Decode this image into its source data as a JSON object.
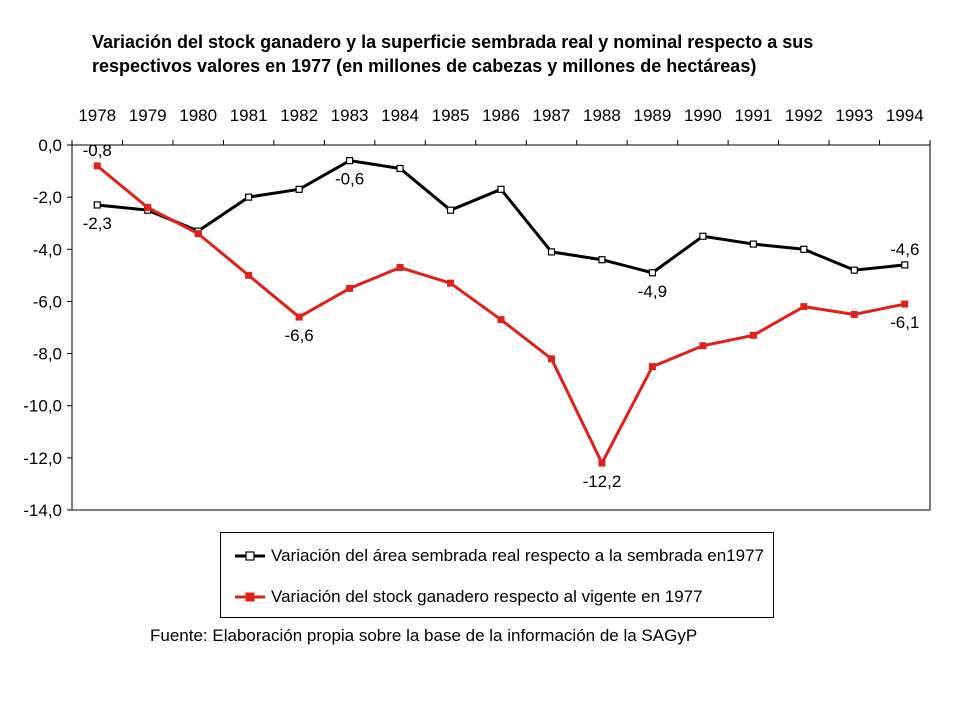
{
  "chart_data": {
    "type": "line",
    "title": [
      "Variación del stock ganadero y la superficie sembrada real y nominal respecto a sus",
      "respectivos valores en 1977 (en millones de cabezas y millones de hectáreas)"
    ],
    "categories": [
      "1978",
      "1979",
      "1980",
      "1981",
      "1982",
      "1983",
      "1984",
      "1985",
      "1986",
      "1987",
      "1988",
      "1989",
      "1990",
      "1991",
      "1992",
      "1993",
      "1994"
    ],
    "y_ticks": [
      "0,0",
      "-2,0",
      "-4,0",
      "-6,0",
      "-8,0",
      "-10,0",
      "-12,0",
      "-14,0"
    ],
    "ylim": [
      -14,
      0
    ],
    "grid": false,
    "legend_position": "bottom",
    "series": [
      {
        "name": "Variación del área sembrada real respecto a la sembrada en1977",
        "color": "#000000",
        "marker": "hollow-square",
        "values": [
          -2.3,
          -2.5,
          -3.3,
          -2.0,
          -1.7,
          -0.6,
          -0.9,
          -2.5,
          -1.7,
          -4.1,
          -4.4,
          -4.9,
          -3.5,
          -3.8,
          -4.0,
          -4.8,
          -4.6
        ]
      },
      {
        "name": "Variación del stock ganadero respecto al vigente en 1977",
        "color": "#e0201b",
        "marker": "filled-square",
        "values": [
          -0.8,
          -2.4,
          -3.4,
          -5.0,
          -6.6,
          -5.5,
          -4.7,
          -5.3,
          -6.7,
          -8.2,
          -12.2,
          -8.5,
          -7.7,
          -7.3,
          -6.2,
          -6.5,
          -6.1
        ]
      }
    ],
    "annotations": [
      {
        "series": 0,
        "index": 0,
        "text": "-2,3",
        "pos": "below"
      },
      {
        "series": 0,
        "index": 5,
        "text": "-0,6",
        "pos": "below"
      },
      {
        "series": 0,
        "index": 11,
        "text": "-4,9",
        "pos": "below"
      },
      {
        "series": 0,
        "index": 16,
        "text": "-4,6",
        "pos": "above"
      },
      {
        "series": 1,
        "index": 0,
        "text": "-0,8",
        "pos": "above"
      },
      {
        "series": 1,
        "index": 4,
        "text": "-6,6",
        "pos": "below"
      },
      {
        "series": 1,
        "index": 10,
        "text": "-12,2",
        "pos": "below"
      },
      {
        "series": 1,
        "index": 16,
        "text": "-6,1",
        "pos": "below"
      }
    ]
  },
  "source": "Fuente: Elaboración propia sobre la base de la información de la SAGyP"
}
